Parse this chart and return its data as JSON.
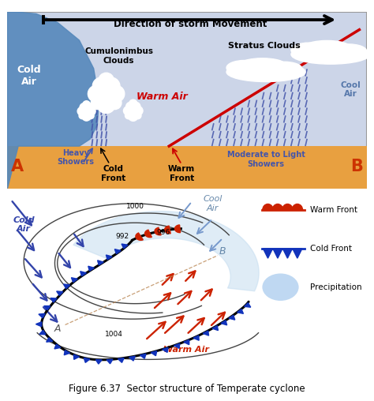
{
  "fig_width": 4.74,
  "fig_height": 5.08,
  "bg_color": "#ffffff",
  "top_panel": {
    "sky_color": "#ccd5e8",
    "cold_air_color": "#5588bb",
    "ground_color": "#e8a040",
    "title": "Direction of storm Movement",
    "title_fontsize": 8.5,
    "cold_air_text": "Cold\nAir",
    "cool_air_text": "Cool\nAir",
    "warm_air_text": "Warm Air",
    "warm_air_color": "#cc0000",
    "cold_air_label_color": "#336699",
    "cool_air_label_color": "#5577aa",
    "cumulo_text": "Cumulonimbus\nClouds",
    "stratus_text": "Stratus Clouds",
    "heavy_showers_text": "Heavy\nShowers",
    "heavy_showers_color": "#4455aa",
    "cold_front_text": "Cold\nFront",
    "warm_front_text": "Warm\nFront",
    "moderate_text": "Moderate to Light\nShowers",
    "moderate_color": "#4455aa",
    "rain_color": "#4455aa",
    "warm_front_line_color": "#cc0000",
    "label_A_color": "#cc3300",
    "label_B_color": "#cc3300"
  },
  "bottom_panel": {
    "arrow_cold_color": "#3344aa",
    "arrow_warm_color": "#cc2200",
    "cold_air_label": "Cold\nAir",
    "cool_air_label": "Cool\nAir",
    "warm_air_label": "Warm Air",
    "legend_warm_front": "Warm Front",
    "legend_cold_front": "Cold Front",
    "legend_precip": "Precipitation",
    "label_A": "A",
    "label_B": "B"
  },
  "caption": "Figure 6.37  Sector structure of Temperate cyclone",
  "caption_fontsize": 8.5
}
